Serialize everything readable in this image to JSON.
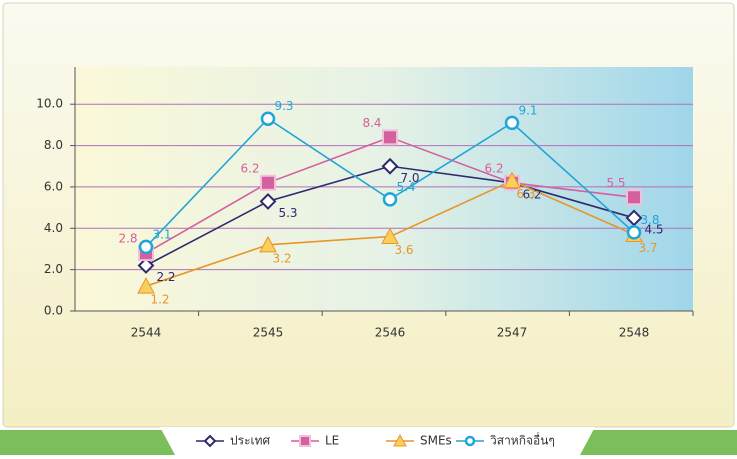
{
  "chart_data": {
    "type": "line",
    "categories": [
      "2544",
      "2545",
      "2546",
      "2547",
      "2548"
    ],
    "series": [
      {
        "name": "ประเทศ",
        "color": "#2e2a6e",
        "marker": "diamond",
        "values": [
          2.2,
          5.3,
          7.0,
          6.2,
          4.5
        ],
        "value_labels": [
          "2.2",
          "5.3",
          "7.0",
          "6.2",
          "4.5"
        ]
      },
      {
        "name": "LE",
        "color": "#d4609f",
        "marker": "square",
        "values": [
          2.8,
          6.2,
          8.4,
          6.2,
          5.5
        ],
        "value_labels": [
          "2.8",
          "6.2",
          "8.4",
          "6.2",
          "5.5"
        ]
      },
      {
        "name": "SMEs",
        "color": "#e8962a",
        "marker": "triangle",
        "values": [
          1.2,
          3.2,
          3.6,
          6.3,
          3.7
        ],
        "value_labels": [
          "1.2",
          "3.2",
          "3.6",
          "6.3",
          "3.7"
        ]
      },
      {
        "name": "วิสาหกิจอื่นๆ",
        "color": "#1fa6d8",
        "marker": "circle",
        "values": [
          3.1,
          9.3,
          5.4,
          9.1,
          3.8
        ],
        "value_labels": [
          "3.1",
          "9.3",
          "5.4",
          "9.1",
          "3.8"
        ]
      }
    ],
    "ylim": [
      0,
      11.8
    ],
    "yticks": [
      {
        "value": 0,
        "label": "0.0"
      },
      {
        "value": 2,
        "label": "2.0"
      },
      {
        "value": 4,
        "label": "4.0"
      },
      {
        "value": 6,
        "label": "6.0"
      },
      {
        "value": 8,
        "label": "8.0"
      },
      {
        "value": 10,
        "label": "10.0"
      }
    ],
    "grid": true
  }
}
